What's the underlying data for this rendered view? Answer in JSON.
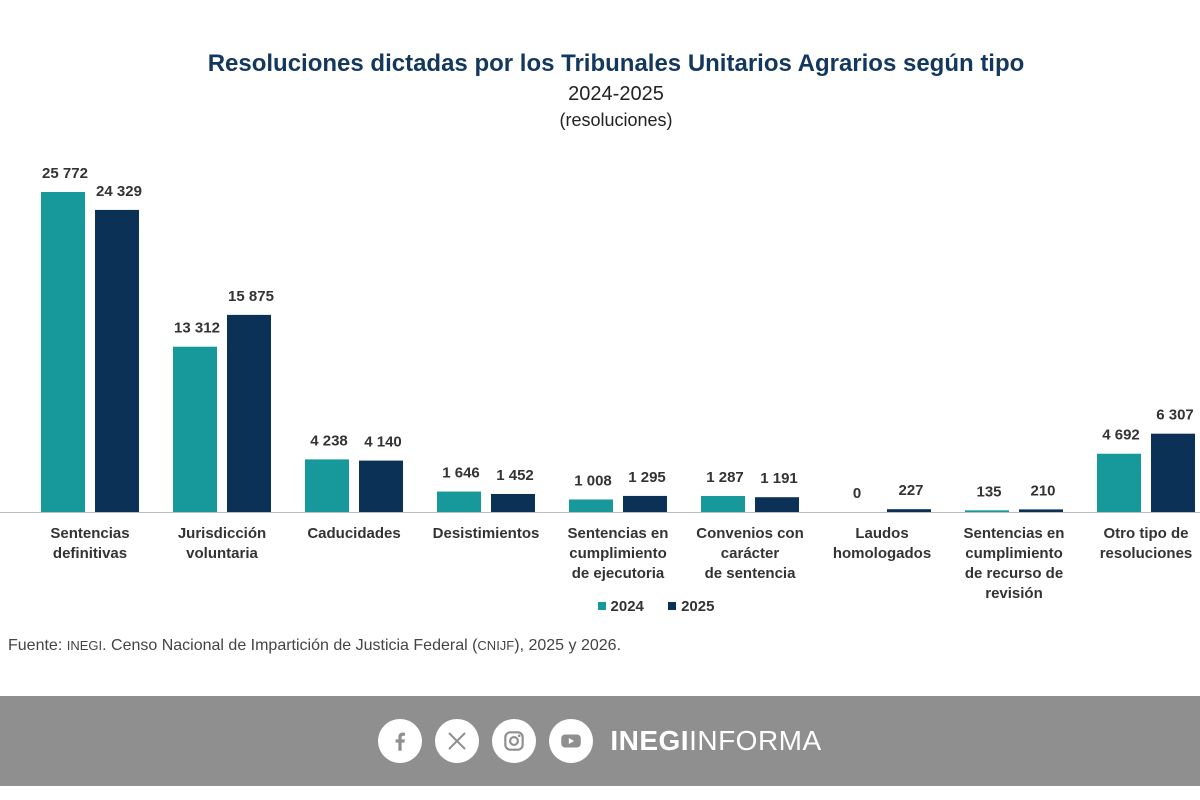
{
  "header": {
    "title": "Resoluciones dictadas por los Tribunales Unitarios Agrarios según tipo",
    "subtitle": "2024-2025",
    "unit": "(resoluciones)"
  },
  "chart_data": {
    "type": "bar",
    "title": "Resoluciones dictadas por los Tribunales Unitarios Agrarios según tipo",
    "subtitle": "2024-2025",
    "ylabel": "(resoluciones)",
    "ylim": [
      0,
      26000
    ],
    "grid": false,
    "legend": "bottom",
    "categories": [
      [
        "Sentencias",
        "definitivas"
      ],
      [
        "Jurisdicción",
        "voluntaria"
      ],
      [
        "Caducidades"
      ],
      [
        "Desistimientos"
      ],
      [
        "Sentencias en",
        "cumplimiento",
        "de ejecutoria"
      ],
      [
        "Convenios con",
        "carácter",
        "de sentencia"
      ],
      [
        "Laudos",
        "homologados"
      ],
      [
        "Sentencias en",
        "cumplimiento",
        "de recurso de",
        "revisión"
      ],
      [
        "Otro tipo de",
        "resoluciones"
      ]
    ],
    "series": [
      {
        "name": "2024",
        "color": "#17999b",
        "values": [
          25772,
          13312,
          4238,
          1646,
          1008,
          1287,
          0,
          135,
          4692
        ],
        "labels": [
          "25 772",
          "13 312",
          "4 238",
          "1 646",
          "1 008",
          "1 287",
          "0",
          "135",
          "4 692"
        ]
      },
      {
        "name": "2025",
        "color": "#0c3157",
        "values": [
          24329,
          15875,
          4140,
          1452,
          1295,
          1191,
          227,
          210,
          6307
        ],
        "labels": [
          "24 329",
          "15 875",
          "4 140",
          "1 452",
          "1 295",
          "1 191",
          "227",
          "210",
          "6 307"
        ]
      }
    ]
  },
  "source": {
    "prefix": "Fuente:",
    "inegi": "INEGI",
    "text1": ". Censo Nacional de Impartición de Justicia Federal (",
    "cnijf": "CNIJF",
    "text2": "), 2025 y 2026."
  },
  "footer": {
    "brand_bold": "INEGI",
    "brand_light": "INFORMA",
    "icons": [
      "facebook-icon",
      "x-icon",
      "instagram-icon",
      "youtube-icon"
    ]
  }
}
